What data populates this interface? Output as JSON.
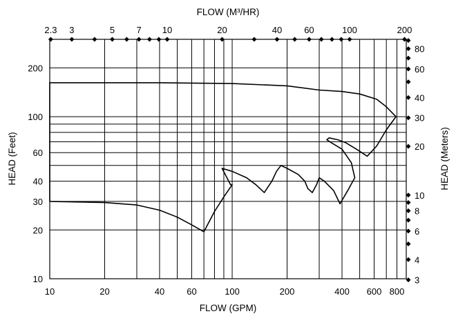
{
  "chart_data": {
    "type": "line",
    "x_scale": "log",
    "y_scale": "log",
    "xlim": [
      10,
      900
    ],
    "ylim": [
      10,
      300
    ],
    "xlabel_bottom": "FLOW (GPM)",
    "xlabel_top": "FLOW (M³/HR)",
    "ylabel_left": "HEAD (Feet)",
    "ylabel_right": "HEAD (Meters)",
    "ticks_bottom": [
      {
        "value": 10,
        "label": "10"
      },
      {
        "value": 20,
        "label": "20"
      },
      {
        "value": 40,
        "label": "40"
      },
      {
        "value": 60,
        "label": "60"
      },
      {
        "value": 100,
        "label": "100"
      },
      {
        "value": 200,
        "label": "200"
      },
      {
        "value": 400,
        "label": "400"
      },
      {
        "value": 600,
        "label": "600"
      },
      {
        "value": 800,
        "label": "800"
      }
    ],
    "ticks_left": [
      {
        "value": 10,
        "label": "10"
      },
      {
        "value": 20,
        "label": "20"
      },
      {
        "value": 30,
        "label": "30"
      },
      {
        "value": 40,
        "label": "40"
      },
      {
        "value": 60,
        "label": "60"
      },
      {
        "value": 100,
        "label": "100"
      },
      {
        "value": 200,
        "label": "200"
      }
    ],
    "ticks_top": [
      {
        "value": 2.3,
        "label": "2.3"
      },
      {
        "value": 3,
        "label": "3"
      },
      {
        "value": 4,
        "label": ""
      },
      {
        "value": 5,
        "label": "5"
      },
      {
        "value": 6,
        "label": ""
      },
      {
        "value": 7,
        "label": "7"
      },
      {
        "value": 8,
        "label": ""
      },
      {
        "value": 9,
        "label": ""
      },
      {
        "value": 10,
        "label": "10"
      },
      {
        "value": 20,
        "label": "20"
      },
      {
        "value": 30,
        "label": ""
      },
      {
        "value": 40,
        "label": "40"
      },
      {
        "value": 50,
        "label": ""
      },
      {
        "value": 60,
        "label": "60"
      },
      {
        "value": 70,
        "label": ""
      },
      {
        "value": 80,
        "label": ""
      },
      {
        "value": 90,
        "label": ""
      },
      {
        "value": 100,
        "label": "100"
      },
      {
        "value": 200,
        "label": "200"
      }
    ],
    "ticks_right": [
      {
        "value": 3,
        "label": "3"
      },
      {
        "value": 4,
        "label": "4"
      },
      {
        "value": 5,
        "label": ""
      },
      {
        "value": 6,
        "label": "6"
      },
      {
        "value": 7,
        "label": ""
      },
      {
        "value": 8,
        "label": "8"
      },
      {
        "value": 9,
        "label": ""
      },
      {
        "value": 10,
        "label": "10"
      },
      {
        "value": 20,
        "label": "20"
      },
      {
        "value": 30,
        "label": "30"
      },
      {
        "value": 40,
        "label": "40"
      },
      {
        "value": 50,
        "label": ""
      },
      {
        "value": 60,
        "label": "60"
      },
      {
        "value": 70,
        "label": ""
      },
      {
        "value": 80,
        "label": "80"
      },
      {
        "value": 90,
        "label": ""
      }
    ],
    "grid_x": [
      20,
      30,
      40,
      50,
      60,
      70,
      80,
      90,
      100,
      200,
      300,
      400,
      500,
      600,
      700,
      800
    ],
    "grid_y": [
      20,
      30,
      40,
      50,
      60,
      70,
      80,
      90,
      100,
      200
    ],
    "grid": true,
    "series": [
      {
        "points": [
          [
            10,
            30
          ],
          [
            20,
            29.5
          ],
          [
            30,
            28.5
          ],
          [
            40,
            26.5
          ],
          [
            50,
            24
          ],
          [
            60,
            21.5
          ],
          [
            70,
            19.5
          ],
          [
            80,
            26
          ],
          [
            90,
            32
          ],
          [
            100,
            38
          ],
          [
            98,
            38
          ],
          [
            88,
            48
          ],
          [
            100,
            46
          ],
          [
            120,
            42
          ],
          [
            135,
            38
          ],
          [
            150,
            34
          ],
          [
            165,
            40
          ],
          [
            175,
            46
          ],
          [
            185,
            50
          ],
          [
            200,
            48
          ],
          [
            230,
            44
          ],
          [
            250,
            40
          ],
          [
            260,
            36
          ],
          [
            275,
            34
          ],
          [
            290,
            38
          ],
          [
            300,
            42
          ],
          [
            320,
            40
          ],
          [
            360,
            35
          ],
          [
            390,
            29
          ],
          [
            430,
            35
          ],
          [
            470,
            42
          ],
          [
            450,
            52
          ],
          [
            400,
            63
          ],
          [
            350,
            69
          ],
          [
            330,
            72
          ],
          [
            340,
            74
          ],
          [
            380,
            72
          ],
          [
            420,
            69
          ],
          [
            480,
            63
          ],
          [
            550,
            57
          ],
          [
            620,
            66
          ],
          [
            700,
            83
          ],
          [
            790,
            100
          ],
          [
            700,
            115
          ],
          [
            620,
            128
          ],
          [
            500,
            138
          ],
          [
            400,
            143
          ],
          [
            300,
            146
          ],
          [
            200,
            155
          ],
          [
            100,
            160
          ],
          [
            40,
            162
          ],
          [
            10,
            162
          ],
          [
            10,
            30
          ]
        ]
      }
    ]
  }
}
